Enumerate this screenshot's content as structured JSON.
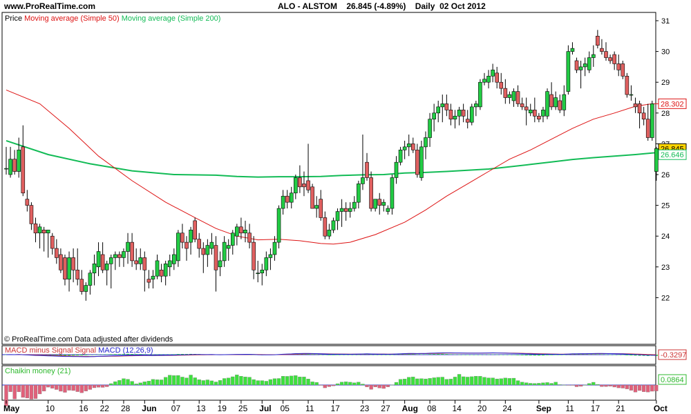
{
  "header": {
    "site": "www.ProRealTime.com",
    "title": "ALO - ALSTOM    26.845 (-4.89%)    Daily  02 Oct 2012"
  },
  "legend": {
    "price": "Price",
    "ma50": "Moving average (Simple 50)",
    "ma200": "Moving average (Simple 200)"
  },
  "footnote": "© ProRealTime.com  Data adjusted after dividends",
  "colors": {
    "up": "#22cc44",
    "down": "#e06060",
    "ma50": "#dd1111",
    "ma200": "#11bb55",
    "macd": "#2222cc",
    "signal": "#cc3333",
    "chaikin": "#2db82d"
  },
  "price_badges": [
    "28.302",
    "26.845",
    "26.646"
  ],
  "macd": {
    "label_ms": "MACD minus Signal Signal",
    "label_macd": "MACD (12,26,9)",
    "value": "-0.3297"
  },
  "chaikin": {
    "label": "Chaikin money (21)",
    "value": "0.0864"
  },
  "chart_data": {
    "type": "candlestick",
    "title": "ALO - ALSTOM",
    "y_ticks": [
      22,
      23,
      24,
      25,
      26,
      27,
      28,
      29,
      30,
      31
    ],
    "ylim": [
      21.6,
      31.3
    ],
    "x_ticks": [
      {
        "i": 0,
        "label": "May"
      },
      {
        "i": 10,
        "label": "10"
      },
      {
        "i": 18,
        "label": "16"
      },
      {
        "i": 23,
        "label": "22"
      },
      {
        "i": 28,
        "label": "28"
      },
      {
        "i": 33,
        "label": "Jun"
      },
      {
        "i": 40,
        "label": "07"
      },
      {
        "i": 46,
        "label": "13"
      },
      {
        "i": 51,
        "label": "19"
      },
      {
        "i": 56,
        "label": "25"
      },
      {
        "i": 61,
        "label": "Jul"
      },
      {
        "i": 66,
        "label": "05"
      },
      {
        "i": 72,
        "label": "11"
      },
      {
        "i": 78,
        "label": "17"
      },
      {
        "i": 85,
        "label": "23"
      },
      {
        "i": 90,
        "label": "27"
      },
      {
        "i": 95,
        "label": "Aug"
      },
      {
        "i": 101,
        "label": "08"
      },
      {
        "i": 107,
        "label": "14"
      },
      {
        "i": 113,
        "label": "20"
      },
      {
        "i": 119,
        "label": "24"
      },
      {
        "i": 127,
        "label": "Sep"
      },
      {
        "i": 134,
        "label": "11"
      },
      {
        "i": 140,
        "label": "17"
      },
      {
        "i": 146,
        "label": "21"
      },
      {
        "i": 155,
        "label": "Oct"
      }
    ],
    "candles": [
      [
        26.2,
        26.9,
        26.0,
        26.2
      ],
      [
        26.0,
        26.9,
        25.9,
        26.5
      ],
      [
        26.5,
        26.8,
        26.0,
        26.1
      ],
      [
        26.1,
        27.2,
        25.9,
        26.8
      ],
      [
        26.9,
        27.6,
        25.3,
        25.4
      ],
      [
        25.2,
        25.5,
        24.8,
        25.0
      ],
      [
        25.0,
        25.1,
        24.2,
        24.4
      ],
      [
        24.4,
        24.6,
        23.8,
        24.1
      ],
      [
        24.1,
        24.4,
        23.6,
        24.3
      ],
      [
        24.2,
        24.3,
        23.5,
        24.1
      ],
      [
        24.1,
        24.2,
        23.3,
        24.2
      ],
      [
        24.0,
        24.1,
        23.4,
        23.6
      ],
      [
        23.6,
        23.9,
        23.1,
        23.3
      ],
      [
        23.4,
        23.6,
        22.8,
        22.9
      ],
      [
        23.3,
        23.4,
        22.4,
        22.6
      ],
      [
        22.6,
        23.5,
        22.2,
        23.3
      ],
      [
        23.3,
        23.6,
        22.5,
        22.9
      ],
      [
        22.9,
        23.6,
        22.4,
        22.6
      ],
      [
        22.6,
        22.9,
        22.1,
        22.2
      ],
      [
        22.2,
        22.5,
        21.9,
        22.4
      ],
      [
        22.4,
        22.9,
        22.1,
        22.8
      ],
      [
        22.8,
        23.4,
        22.4,
        23.1
      ],
      [
        23.0,
        23.8,
        22.7,
        23.5
      ],
      [
        23.4,
        23.8,
        22.8,
        22.9
      ],
      [
        22.9,
        23.2,
        22.4,
        23.1
      ],
      [
        23.1,
        23.4,
        22.3,
        23.3
      ],
      [
        23.3,
        23.5,
        22.9,
        23.4
      ],
      [
        23.4,
        23.5,
        23.0,
        23.3
      ],
      [
        23.3,
        23.6,
        23.0,
        23.5
      ],
      [
        23.5,
        24.1,
        23.1,
        23.8
      ],
      [
        23.8,
        24.1,
        23.0,
        23.2
      ],
      [
        23.2,
        23.6,
        22.9,
        23.1
      ],
      [
        23.1,
        23.6,
        22.9,
        23.3
      ],
      [
        23.3,
        23.5,
        22.2,
        22.9
      ],
      [
        22.6,
        22.9,
        22.3,
        22.5
      ],
      [
        22.6,
        22.9,
        22.3,
        22.7
      ],
      [
        22.7,
        23.4,
        22.6,
        23.2
      ],
      [
        22.9,
        23.1,
        22.5,
        22.7
      ],
      [
        22.7,
        23.2,
        22.4,
        23.1
      ],
      [
        23.0,
        23.4,
        22.7,
        23.2
      ],
      [
        23.1,
        23.6,
        22.9,
        23.4
      ],
      [
        23.2,
        24.2,
        23.0,
        24.1
      ],
      [
        24.1,
        24.4,
        23.6,
        23.8
      ],
      [
        23.8,
        24.0,
        23.2,
        23.6
      ],
      [
        23.8,
        24.3,
        23.4,
        24.2
      ],
      [
        24.5,
        24.6,
        23.8,
        23.9
      ],
      [
        23.9,
        24.1,
        23.3,
        23.6
      ],
      [
        23.6,
        23.8,
        22.8,
        23.4
      ],
      [
        23.4,
        23.9,
        23.0,
        23.7
      ],
      [
        23.6,
        24.1,
        23.4,
        23.8
      ],
      [
        23.7,
        24.0,
        22.2,
        22.9
      ],
      [
        23.0,
        23.5,
        22.7,
        23.2
      ],
      [
        23.2,
        24.0,
        23.0,
        23.8
      ],
      [
        23.6,
        23.9,
        23.2,
        23.7
      ],
      [
        23.7,
        24.2,
        23.4,
        24.1
      ],
      [
        24.0,
        24.4,
        23.7,
        24.3
      ],
      [
        24.3,
        24.6,
        23.9,
        24.1
      ],
      [
        24.1,
        24.5,
        23.8,
        24.2
      ],
      [
        24.1,
        24.4,
        23.6,
        23.8
      ],
      [
        23.8,
        24.0,
        22.6,
        22.9
      ],
      [
        22.8,
        23.2,
        22.5,
        22.8
      ],
      [
        22.8,
        23.1,
        22.4,
        22.9
      ],
      [
        22.9,
        23.5,
        22.7,
        23.3
      ],
      [
        23.3,
        23.6,
        22.9,
        23.4
      ],
      [
        23.4,
        24.0,
        23.2,
        23.8
      ],
      [
        23.8,
        25.0,
        23.6,
        24.9
      ],
      [
        24.9,
        25.5,
        24.7,
        25.3
      ],
      [
        25.3,
        25.5,
        24.9,
        25.1
      ],
      [
        25.1,
        25.6,
        24.9,
        25.4
      ],
      [
        25.4,
        26.0,
        25.2,
        25.9
      ],
      [
        25.9,
        26.3,
        25.4,
        25.6
      ],
      [
        25.7,
        26.1,
        25.3,
        25.6
      ],
      [
        25.8,
        27.0,
        25.4,
        25.5
      ],
      [
        25.6,
        25.7,
        24.9,
        24.9
      ],
      [
        24.9,
        25.3,
        24.6,
        25.0
      ],
      [
        25.2,
        25.5,
        24.5,
        24.6
      ],
      [
        24.6,
        24.8,
        23.9,
        24.0
      ],
      [
        24.0,
        24.4,
        23.9,
        24.2
      ],
      [
        24.2,
        24.6,
        24.1,
        24.5
      ],
      [
        24.5,
        24.9,
        24.2,
        24.8
      ],
      [
        24.8,
        25.2,
        24.3,
        24.9
      ],
      [
        24.9,
        25.1,
        24.5,
        24.8
      ],
      [
        24.8,
        25.1,
        24.6,
        24.9
      ],
      [
        24.9,
        25.3,
        24.8,
        25.1
      ],
      [
        25.1,
        25.8,
        24.9,
        25.7
      ],
      [
        25.7,
        27.3,
        25.5,
        25.9
      ],
      [
        26.4,
        26.7,
        25.8,
        25.9
      ],
      [
        25.9,
        26.1,
        24.8,
        24.9
      ],
      [
        24.9,
        25.2,
        24.8,
        25.2
      ],
      [
        25.2,
        25.4,
        24.7,
        25.0
      ],
      [
        25.0,
        25.2,
        24.8,
        25.1
      ],
      [
        24.8,
        25.0,
        24.7,
        24.9
      ],
      [
        24.9,
        26.0,
        24.7,
        25.9
      ],
      [
        25.9,
        26.6,
        25.7,
        26.4
      ],
      [
        26.4,
        26.9,
        26.3,
        26.8
      ],
      [
        26.8,
        27.1,
        26.5,
        26.9
      ],
      [
        26.9,
        27.3,
        26.6,
        27.0
      ],
      [
        27.0,
        27.2,
        26.7,
        26.8
      ],
      [
        26.8,
        27.0,
        25.9,
        26.0
      ],
      [
        25.9,
        27.1,
        25.8,
        26.9
      ],
      [
        26.9,
        27.4,
        26.5,
        27.2
      ],
      [
        27.2,
        28.0,
        26.9,
        27.8
      ],
      [
        27.8,
        28.3,
        27.4,
        28.0
      ],
      [
        28.0,
        28.4,
        27.7,
        28.2
      ],
      [
        28.2,
        28.6,
        27.7,
        28.3
      ],
      [
        28.3,
        28.6,
        27.9,
        28.1
      ],
      [
        28.1,
        28.3,
        27.6,
        27.8
      ],
      [
        27.8,
        28.1,
        27.5,
        27.9
      ],
      [
        27.9,
        28.2,
        27.6,
        28.1
      ],
      [
        28.1,
        28.3,
        27.7,
        27.9
      ],
      [
        27.8,
        28.1,
        27.5,
        27.7
      ],
      [
        27.7,
        28.3,
        27.6,
        28.2
      ],
      [
        28.2,
        28.4,
        27.9,
        28.3
      ],
      [
        28.2,
        29.1,
        28.1,
        29.0
      ],
      [
        29.0,
        29.3,
        28.9,
        29.1
      ],
      [
        29.0,
        29.4,
        28.8,
        29.2
      ],
      [
        29.2,
        29.6,
        29.0,
        29.4
      ],
      [
        29.3,
        29.5,
        28.8,
        29.0
      ],
      [
        29.0,
        29.3,
        28.6,
        28.8
      ],
      [
        28.8,
        29.1,
        28.3,
        28.5
      ],
      [
        28.5,
        28.7,
        28.3,
        28.6
      ],
      [
        28.4,
        28.8,
        28.2,
        28.7
      ],
      [
        28.7,
        28.9,
        28.2,
        28.3
      ],
      [
        28.3,
        28.5,
        28.1,
        28.2
      ],
      [
        28.2,
        28.5,
        27.6,
        28.1
      ],
      [
        28.0,
        28.3,
        27.9,
        28.1
      ],
      [
        28.1,
        28.5,
        27.7,
        27.9
      ],
      [
        27.9,
        28.0,
        27.7,
        27.8
      ],
      [
        27.9,
        28.2,
        27.7,
        28.1
      ],
      [
        27.9,
        28.8,
        27.8,
        28.7
      ],
      [
        28.6,
        29.0,
        28.1,
        28.2
      ],
      [
        28.2,
        28.7,
        28.1,
        28.5
      ],
      [
        28.4,
        28.6,
        28.0,
        28.1
      ],
      [
        28.1,
        28.9,
        27.9,
        28.6
      ],
      [
        28.7,
        30.2,
        28.6,
        30.0
      ],
      [
        30.0,
        30.3,
        29.9,
        30.1
      ],
      [
        29.7,
        29.8,
        29.3,
        29.4
      ],
      [
        29.4,
        29.7,
        28.8,
        29.5
      ],
      [
        29.5,
        29.8,
        29.2,
        29.6
      ],
      [
        29.4,
        30.0,
        29.3,
        29.8
      ],
      [
        29.8,
        30.2,
        29.5,
        29.9
      ],
      [
        30.5,
        30.7,
        30.1,
        30.2
      ],
      [
        30.1,
        30.4,
        29.9,
        30.0
      ],
      [
        30.0,
        30.3,
        29.7,
        29.8
      ],
      [
        29.8,
        29.9,
        29.6,
        29.7
      ],
      [
        29.9,
        30.0,
        29.4,
        29.6
      ],
      [
        29.6,
        29.9,
        29.2,
        29.4
      ],
      [
        29.6,
        29.7,
        29.1,
        29.2
      ],
      [
        29.2,
        29.3,
        28.5,
        28.6
      ],
      [
        28.6,
        28.9,
        28.4,
        28.6
      ],
      [
        28.3,
        28.5,
        28.0,
        28.2
      ],
      [
        28.3,
        28.4,
        27.5,
        28.0
      ],
      [
        28.0,
        28.2,
        27.6,
        27.8
      ],
      [
        27.8,
        28.3,
        27.1,
        27.2
      ],
      [
        27.2,
        28.4,
        27.1,
        28.3
      ],
      [
        26.1,
        26.9,
        25.8,
        26.845
      ]
    ],
    "series": [
      {
        "name": "Moving average (Simple 50)",
        "color": "#dd1111",
        "x": [
          0,
          8,
          15,
          22,
          30,
          38,
          45,
          50,
          55,
          60,
          65,
          70,
          75,
          78,
          82,
          88,
          95,
          100,
          105,
          110,
          115,
          120,
          125,
          130,
          135,
          140,
          145,
          150,
          154,
          156
        ],
        "values": [
          28.75,
          28.3,
          27.5,
          26.6,
          25.8,
          25.1,
          24.6,
          24.25,
          24.0,
          23.88,
          23.9,
          23.85,
          23.76,
          23.74,
          23.8,
          24.05,
          24.45,
          24.85,
          25.3,
          25.7,
          26.1,
          26.5,
          26.8,
          27.15,
          27.5,
          27.8,
          28.0,
          28.22,
          28.3,
          28.3
        ]
      },
      {
        "name": "Moving average (Simple 200)",
        "color": "#11bb55",
        "x": [
          0,
          10,
          20,
          30,
          40,
          50,
          55,
          60,
          65,
          70,
          75,
          80,
          85,
          90,
          95,
          100,
          105,
          110,
          115,
          120,
          125,
          130,
          135,
          140,
          145,
          150,
          154,
          156
        ],
        "values": [
          27.1,
          26.65,
          26.35,
          26.12,
          26.0,
          25.98,
          25.94,
          25.92,
          25.93,
          25.93,
          25.94,
          25.97,
          25.99,
          26.0,
          26.05,
          26.07,
          26.1,
          26.14,
          26.18,
          26.25,
          26.33,
          26.41,
          26.49,
          26.55,
          26.6,
          26.65,
          26.7,
          26.72
        ]
      }
    ],
    "macd_ticks": [
      "-0.3297"
    ],
    "chaikin_ticks": [
      "0.0864"
    ]
  }
}
